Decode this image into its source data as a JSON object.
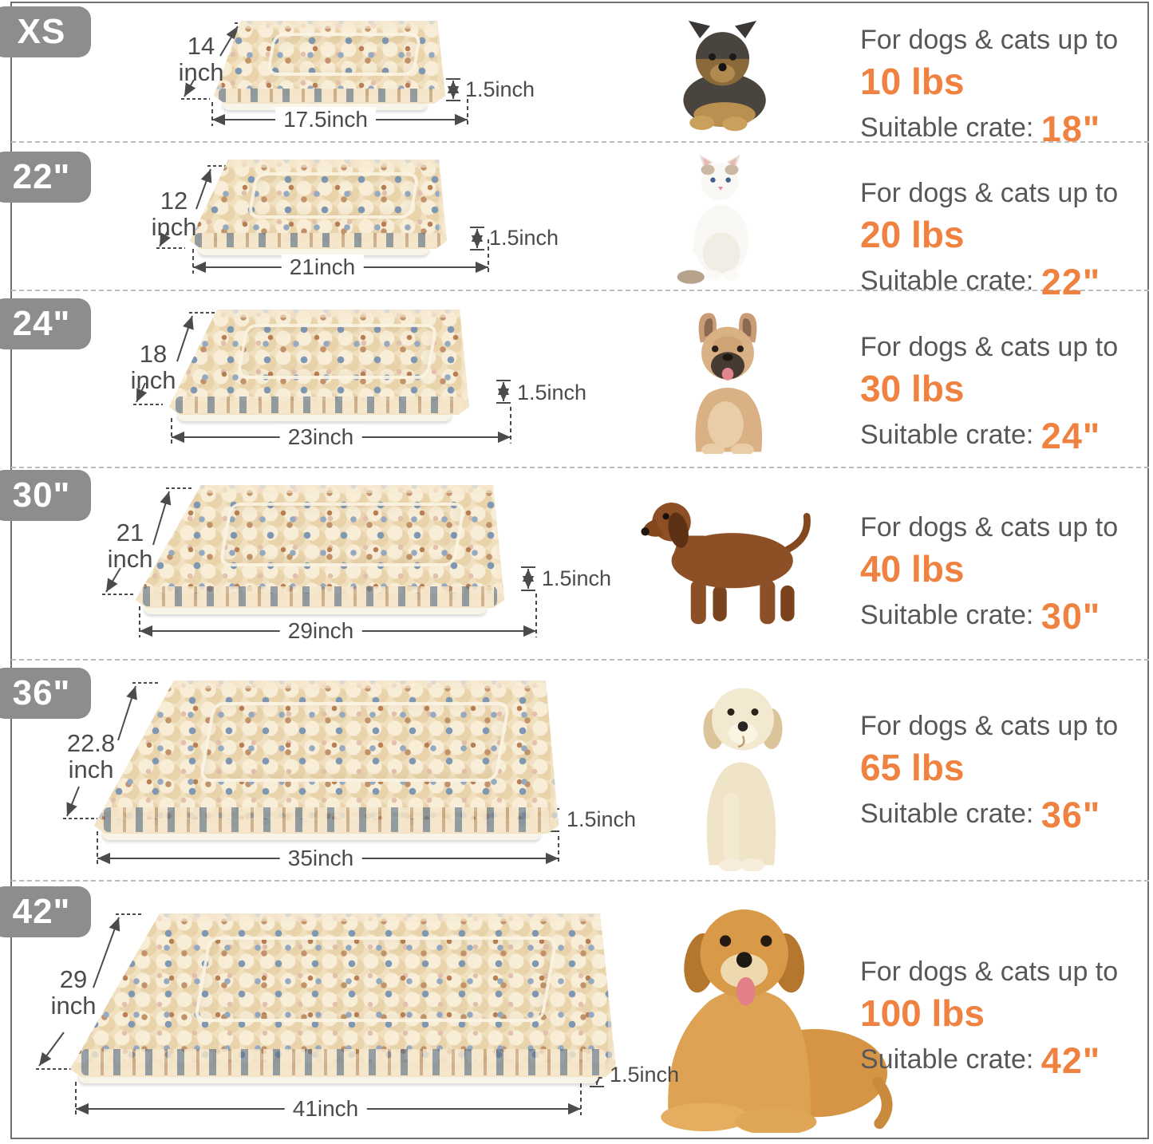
{
  "colors": {
    "accent_orange": "#ef8240",
    "text_gray": "#57585a",
    "badge_gray": "#8d8d8d",
    "annotation_gray": "#4b4b4b",
    "mat_base": "#f0e0bf"
  },
  "rows": [
    {
      "badge": "XS",
      "pet": "yorkshire-terrier-puppy",
      "dimensions": {
        "depth": "14",
        "depth_unit": "inch",
        "width": "17.5inch",
        "thickness": "1.5inch"
      },
      "info": {
        "intro": "For dogs & cats up to",
        "weight": "10 lbs",
        "crate_label": "Suitable crate: ",
        "crate_size": "18\""
      }
    },
    {
      "badge": "22\"",
      "pet": "white-cat",
      "dimensions": {
        "depth": "12",
        "depth_unit": "inch",
        "width": "21inch",
        "thickness": "1.5inch"
      },
      "info": {
        "intro": "For dogs & cats up to",
        "weight": "20 lbs",
        "crate_label": "Suitable crate: ",
        "crate_size": "22\""
      }
    },
    {
      "badge": "24\"",
      "pet": "french-bulldog",
      "dimensions": {
        "depth": "18",
        "depth_unit": "inch",
        "width": "23inch",
        "thickness": "1.5inch"
      },
      "info": {
        "intro": "For dogs & cats up to",
        "weight": "30 lbs",
        "crate_label": "Suitable crate: ",
        "crate_size": "24\""
      }
    },
    {
      "badge": "30\"",
      "pet": "dachshund",
      "dimensions": {
        "depth": "21",
        "depth_unit": "inch",
        "width": "29inch",
        "thickness": "1.5inch"
      },
      "info": {
        "intro": "For dogs & cats up to",
        "weight": "40 lbs",
        "crate_label": "Suitable crate: ",
        "crate_size": "30\""
      }
    },
    {
      "badge": "36\"",
      "pet": "golden-retriever-puppy",
      "dimensions": {
        "depth": "22.8",
        "depth_unit": "inch",
        "width": "35inch",
        "thickness": "1.5inch"
      },
      "info": {
        "intro": "For dogs & cats up to",
        "weight": "65 lbs",
        "crate_label": "Suitable crate: ",
        "crate_size": "36\""
      }
    },
    {
      "badge": "42\"",
      "pet": "golden-retriever",
      "dimensions": {
        "depth": "29",
        "depth_unit": "inch",
        "width": "41inch",
        "thickness": "1.5inch"
      },
      "info": {
        "intro": "For dogs & cats up to",
        "weight": "100 lbs",
        "crate_label": "Suitable crate: ",
        "crate_size": "42\""
      }
    }
  ]
}
